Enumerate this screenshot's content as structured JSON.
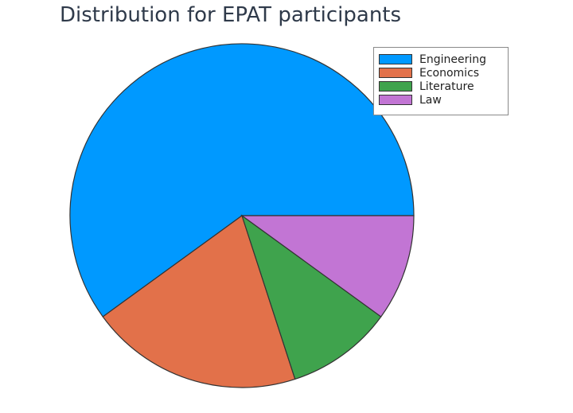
{
  "chart_data": {
    "type": "pie",
    "title": "Distribution for EPAT participants",
    "categories": [
      "Engineering",
      "Economics",
      "Literature",
      "Law"
    ],
    "values": [
      60,
      20,
      10,
      10
    ],
    "colors": [
      "#0099ff",
      "#e2714a",
      "#3fa34d",
      "#c275d4"
    ],
    "start_angle_deg": 0,
    "direction": "counterclockwise",
    "legend_position": "top-right"
  }
}
